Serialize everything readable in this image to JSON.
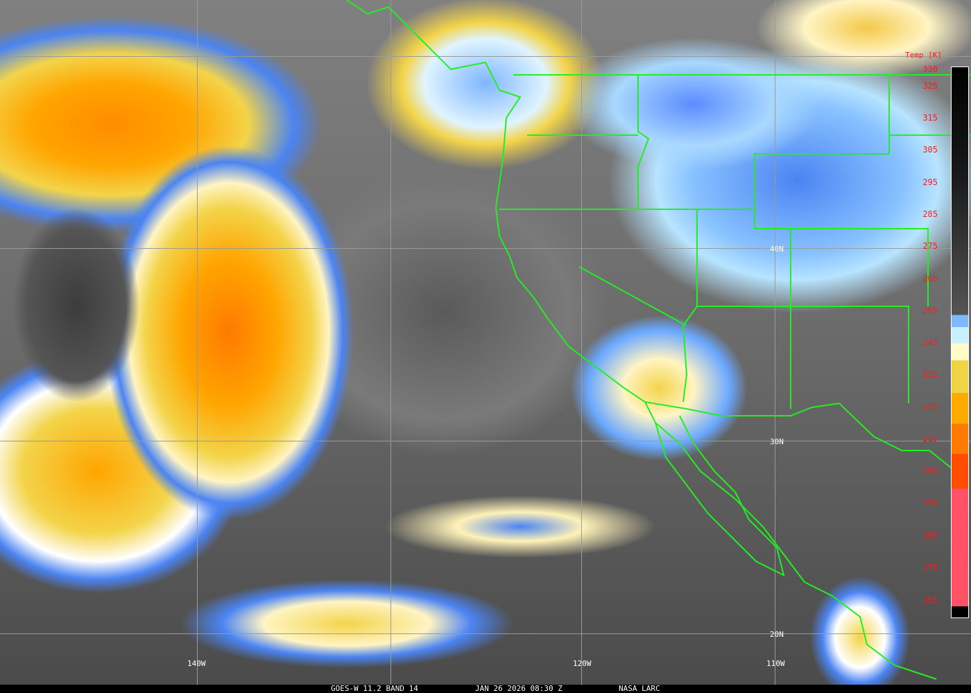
{
  "caption": {
    "satellite": "GOES-W 11.2 BAND 14",
    "datetime": "JAN 26 2026 08:30 Z",
    "credit": "NASA LARC"
  },
  "grid_labels": {
    "lat": [
      "40N",
      "30N",
      "20N"
    ],
    "lon": [
      "140W",
      "120W",
      "110W"
    ]
  },
  "colorbar": {
    "title": "Temp [K]",
    "ticks": [
      "330",
      "325",
      "315",
      "305",
      "295",
      "285",
      "275",
      "265",
      "255",
      "245",
      "235",
      "225",
      "215",
      "205",
      "195",
      "185",
      "175",
      "165"
    ],
    "colors": {
      "cold_pink": "#ff5266",
      "red_orange": "#ff4d00",
      "orange": "#ff7a00",
      "amber": "#ffaa00",
      "yellow": "#f0d444",
      "cream": "#fffbc8",
      "cyan": "#c9f0ff",
      "light_blue": "#7eb8ff",
      "blue": "#3f7cf6"
    }
  },
  "border_color": "#22ee22"
}
